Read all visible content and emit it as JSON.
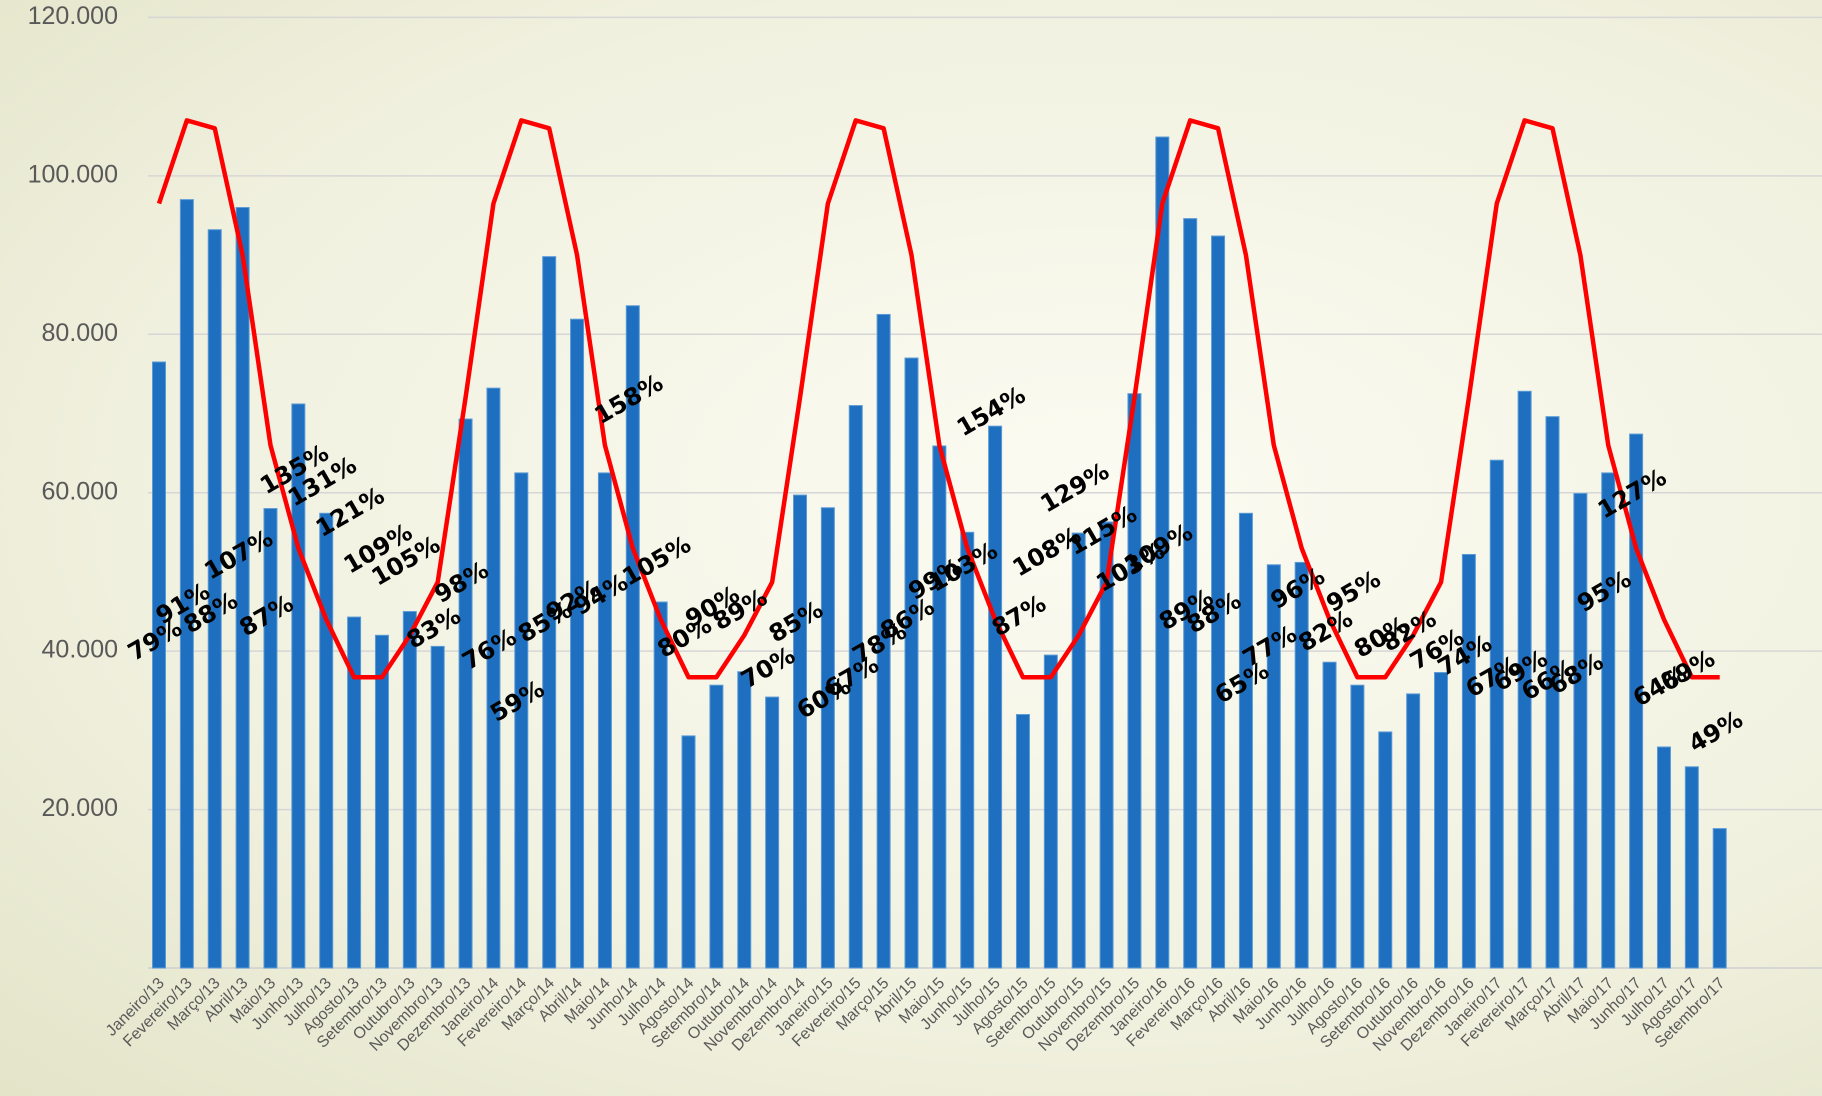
{
  "chart_data": {
    "type": "bar_line",
    "categories": [
      "Janeiro/13",
      "Fevereiro/13",
      "Março/13",
      "Abril/13",
      "Maio/13",
      "Junho/13",
      "Julho/13",
      "Agosto/13",
      "Setembro/13",
      "Outubro/13",
      "Novembro/13",
      "Dezembro/13",
      "Janeiro/14",
      "Fevereiro/14",
      "Março/14",
      "Abril/14",
      "Maio/14",
      "Junho/14",
      "Julho/14",
      "Agosto/14",
      "Setembro/14",
      "Outubro/14",
      "Novembro/14",
      "Dezembro/14",
      "Janeiro/15",
      "Fevereiro/15",
      "Março/15",
      "Abril/15",
      "Maio/15",
      "Junho/15",
      "Julho/15",
      "Agosto/15",
      "Setembro/15",
      "Outubro/15",
      "Novembro/15",
      "Dezembro/15",
      "Janeiro/16",
      "Fevereiro/16",
      "Março/16",
      "Abril/16",
      "Maio/16",
      "Junho/16",
      "Julho/16",
      "Agosto/16",
      "Setembro/16",
      "Outubro/16",
      "Novembro/16",
      "Dezembro/16",
      "Janeiro/17",
      "Fevereiro/17",
      "Março/17",
      "Abril/17",
      "Maio/17",
      "Junho/17",
      "Julho/17",
      "Agosto/17",
      "Setembro/17"
    ],
    "series": [
      {
        "type": "bar",
        "color": "#1f6fc0",
        "values": [
          76500,
          97000,
          93200,
          96000,
          58000,
          71200,
          57400,
          44300,
          42000,
          45000,
          40600,
          69300,
          73200,
          62500,
          89800,
          81900,
          62500,
          83600,
          46200,
          29300,
          35700,
          37400,
          34200,
          59700,
          58100,
          71000,
          82500,
          77000,
          65900,
          55000,
          68400,
          32000,
          39500,
          54900,
          56300,
          72500,
          104900,
          94600,
          92400,
          57400,
          50900,
          51200,
          38600,
          35700,
          29800,
          34600,
          37300,
          52200,
          64100,
          72800,
          69600,
          59900,
          62500,
          67400,
          27900,
          25400,
          17600
        ]
      },
      {
        "type": "line",
        "color": "#ff0000",
        "values": [
          96500,
          107000,
          106000,
          90000,
          66000,
          53000,
          44000,
          36700,
          36700,
          42000,
          48700,
          72000,
          96500,
          107000,
          106000,
          90000,
          66000,
          53000,
          44000,
          36700,
          36700,
          42000,
          48700,
          72000,
          96500,
          107000,
          106000,
          90000,
          66000,
          53000,
          44000,
          36700,
          36700,
          42000,
          48700,
          72000,
          96500,
          107000,
          106000,
          90000,
          66000,
          53000,
          44000,
          36700,
          36700,
          42000,
          48700,
          72000,
          96500,
          107000,
          106000,
          90000,
          66000,
          53000,
          44000,
          36700,
          36700
        ]
      }
    ],
    "percent_labels": {
      "values": [
        79,
        91,
        88,
        107,
        87,
        135,
        131,
        121,
        109,
        105,
        83,
        98,
        76,
        59,
        85,
        92,
        94,
        158,
        105,
        80,
        90,
        89,
        70,
        85,
        60,
        67,
        78,
        86,
        99,
        103,
        154,
        87,
        108,
        129,
        115,
        103,
        109,
        89,
        88,
        65,
        77,
        96,
        82,
        95,
        80,
        82,
        76,
        74,
        67,
        69,
        66,
        68,
        95,
        127,
        64,
        69,
        49
      ],
      "value_labels": [
        "79%",
        "91%",
        "88%",
        "107%",
        "87%",
        "135%",
        "131%",
        "121%",
        "109%",
        "105%",
        "83%",
        "98%",
        "76%",
        "59%",
        "85%",
        "92%",
        "94%",
        "158%",
        "105%",
        "80%",
        "90%",
        "89%",
        "70%",
        "85%",
        "60%",
        "67%",
        "78%",
        "86%",
        "99%",
        "103%",
        "154%",
        "87%",
        "108%",
        "129%",
        "115%",
        "103%",
        "109%",
        "89%",
        "88%",
        "65%",
        "77%",
        "96%",
        "82%",
        "95%",
        "80%",
        "82%",
        "76%",
        "74%",
        "67%",
        "69%",
        "66%",
        "68%",
        "95%",
        "127%",
        "64%",
        "69%",
        "49%"
      ]
    },
    "ylim": [
      0,
      120000
    ],
    "yticks": [
      {
        "value": 20000,
        "label": "20.000"
      },
      {
        "value": 40000,
        "label": "40.000"
      },
      {
        "value": 60000,
        "label": "60.000"
      },
      {
        "value": 80000,
        "label": "80.000"
      },
      {
        "value": 100000,
        "label": "100.000"
      },
      {
        "value": 120000,
        "label": "120.000"
      }
    ],
    "grid": true
  }
}
